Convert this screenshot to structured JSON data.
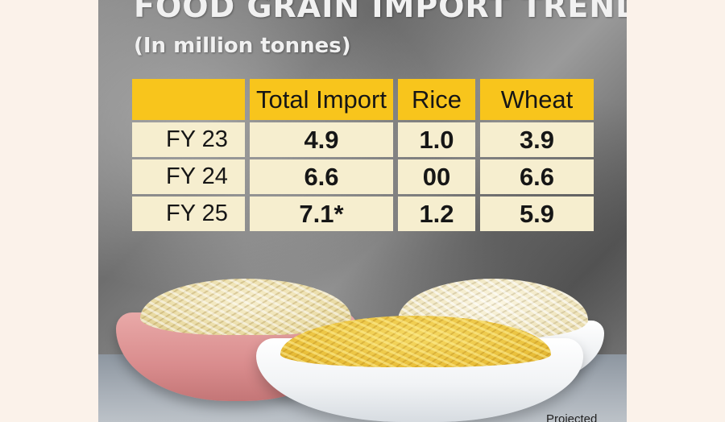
{
  "title": "FOOD GRAIN IMPORT TREND",
  "subtitle": "(In million tonnes)",
  "credit": "Projected",
  "colors": {
    "header_fill": "#f8c51c",
    "cell_fill": "#f6eecf",
    "title_text": "#f1f1f1"
  },
  "chart_data": {
    "type": "table",
    "title": "FOOD GRAIN IMPORT TREND",
    "subtitle": "(In million tonnes)",
    "columns": [
      "",
      "Total Import",
      "Rice",
      "Wheat"
    ],
    "rows": [
      {
        "label": "FY 23",
        "values": [
          "4.9",
          "1.0",
          "3.9"
        ]
      },
      {
        "label": "FY 24",
        "values": [
          "6.6",
          "00",
          "6.6"
        ]
      },
      {
        "label": "FY 25",
        "values": [
          "7.1*",
          "1.2",
          "5.9"
        ]
      }
    ],
    "footnote": "Projected"
  }
}
